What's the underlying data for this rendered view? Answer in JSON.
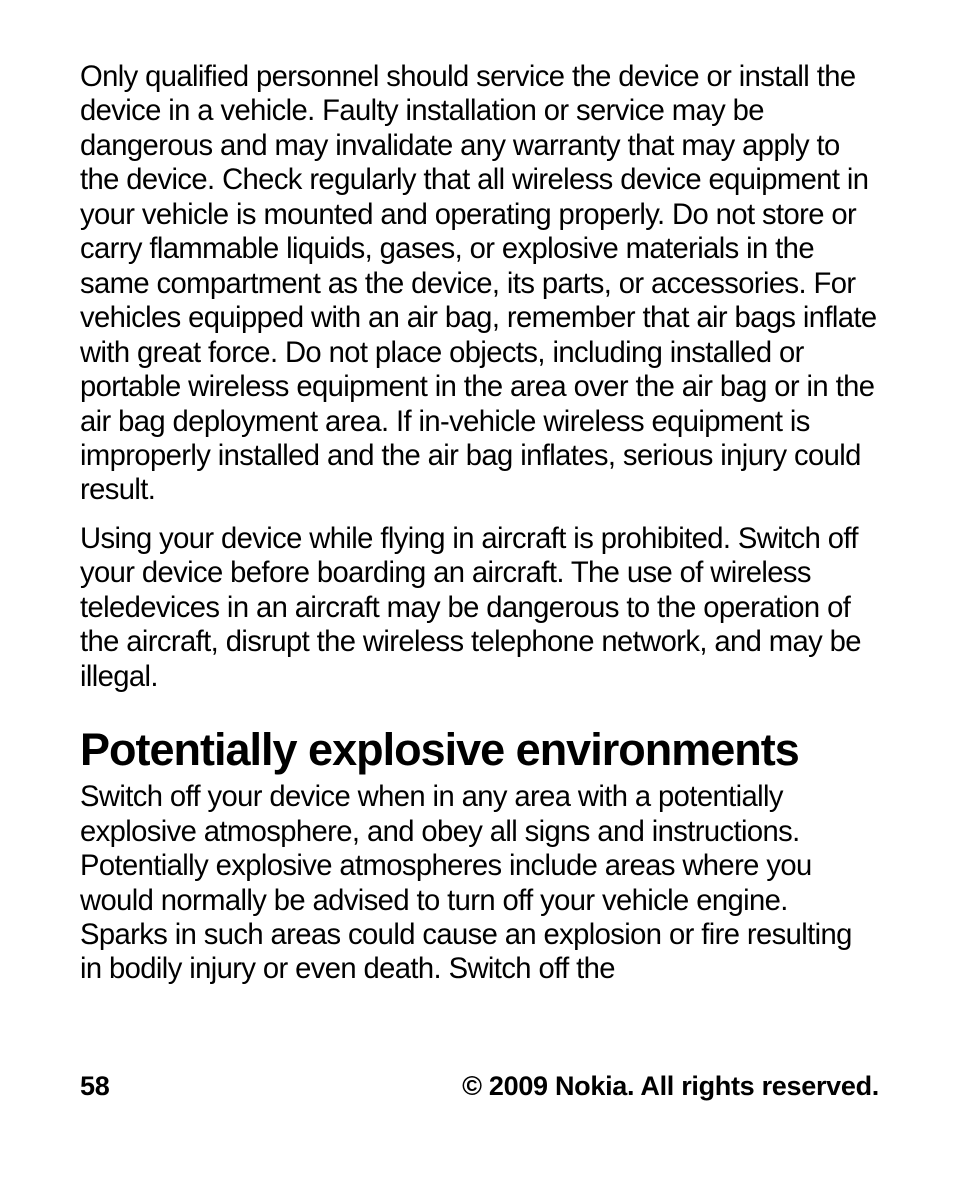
{
  "para1": "Only qualified personnel should service the device or install the device in a vehicle. Faulty installation or service may be dangerous and may invalidate any warranty that may apply to the device. Check regularly that all wireless device equipment in your vehicle is mounted and operating properly. Do not store or carry flammable liquids, gases, or explosive materials in the same compartment as the device, its parts, or accessories. For vehicles equipped with an air bag, remember that air bags inflate with great force. Do not place objects, including installed or portable wireless equipment in the area over the air bag or in the air bag deployment area. If in-vehicle wireless equipment is improperly installed and the air bag inflates, serious injury could result.",
  "para2": "Using your device while flying in aircraft is prohibited. Switch off your device before boarding an aircraft. The use of wireless teledevices in an aircraft may be dangerous to the operation of the aircraft, disrupt the wireless telephone network, and may be illegal.",
  "heading": "Potentially explosive environments",
  "para3": "Switch off your device when in any area with a potentially explosive atmosphere, and obey all signs and instructions. Potentially explosive atmospheres include areas where you would normally be advised to turn off your vehicle engine. Sparks in such areas could cause an explosion or fire resulting in bodily injury or even death. Switch off the",
  "footer": {
    "page": "58",
    "copyright": "© 2009 Nokia. All rights reserved."
  }
}
